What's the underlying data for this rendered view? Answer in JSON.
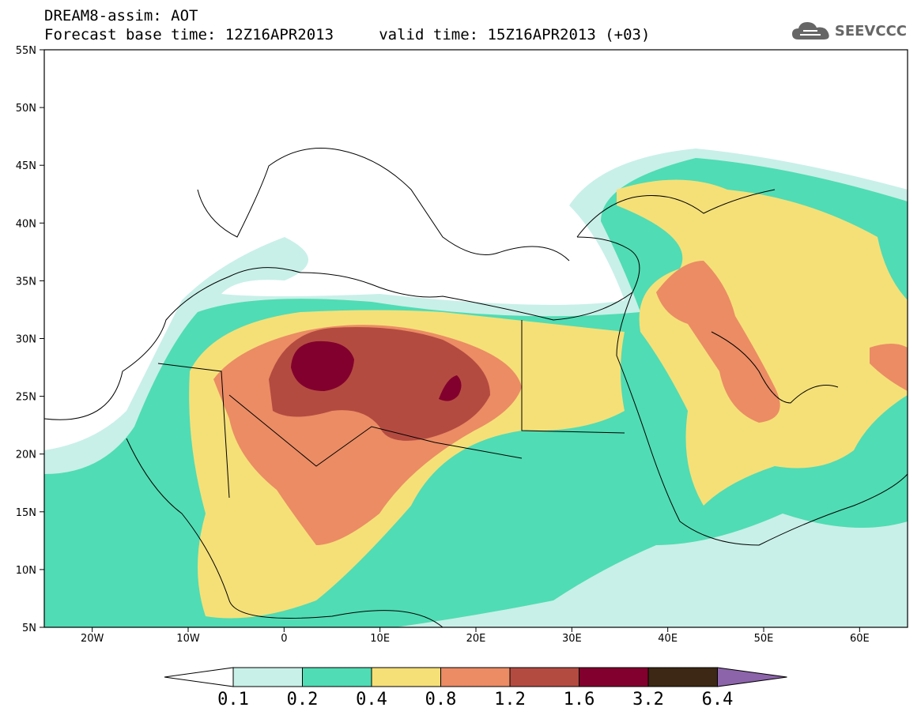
{
  "header": {
    "title_line1": "DREAM8-assim: AOT",
    "title_line2": "Forecast base time: 12Z16APR2013     valid time: 15Z16APR2013 (+03)",
    "logo_text": "SEEVCCC"
  },
  "map": {
    "lat_labels": [
      "55N",
      "50N",
      "45N",
      "40N",
      "35N",
      "30N",
      "25N",
      "20N",
      "15N",
      "10N",
      "5N"
    ],
    "lon_labels": [
      "20W",
      "10W",
      "0",
      "10E",
      "20E",
      "30E",
      "40E",
      "50E",
      "60E"
    ],
    "field": "AOT"
  },
  "colorbar": {
    "levels": [
      "0.1",
      "0.2",
      "0.4",
      "0.8",
      "1.2",
      "1.6",
      "3.2",
      "6.4"
    ],
    "colors": [
      "#ffffff",
      "#c8f0e8",
      "#50dcb4",
      "#f5e078",
      "#eb8c64",
      "#b44b41",
      "#82002d",
      "#3c2814",
      "#8c64aa"
    ]
  }
}
